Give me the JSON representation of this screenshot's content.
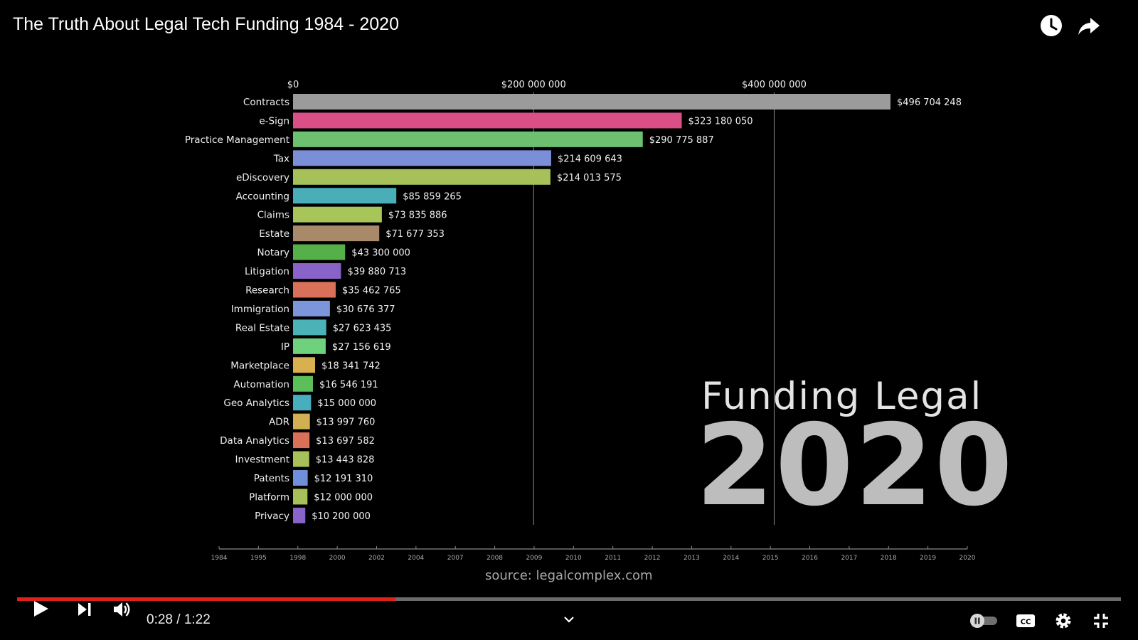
{
  "video": {
    "title": "The Truth About Legal Tech Funding 1984 - 2020",
    "current_time": "0:28",
    "separator": "/",
    "duration": "1:22",
    "progress_fraction": 0.343,
    "accent_color": "#e0201a"
  },
  "icons": {
    "top": [
      "clock-icon",
      "share-icon"
    ],
    "controls": [
      "play-icon",
      "next-icon",
      "volume-icon",
      "chevron-down-icon",
      "autoplay-toggle-icon",
      "cc-icon",
      "gear-icon",
      "exit-fullscreen-icon"
    ]
  },
  "watermark": {
    "line1": "Funding Legal",
    "line2": "2020"
  },
  "source": "source:  legalcomplex.com",
  "chart_data": {
    "type": "bar",
    "orientation": "horizontal",
    "x_ticks": [
      {
        "value": 0,
        "label": "$0"
      },
      {
        "value": 200000000,
        "label": "$200 000 000"
      },
      {
        "value": 400000000,
        "label": "$400 000 000"
      }
    ],
    "xlim": [
      0,
      500000000
    ],
    "grid": true,
    "categories": [
      "Contracts",
      "e-Sign",
      "Practice Management",
      "Tax",
      "eDiscovery",
      "Accounting",
      "Claims",
      "Estate",
      "Notary",
      "Litigation",
      "Research",
      "Immigration",
      "Real Estate",
      "IP",
      "Marketplace",
      "Automation",
      "Geo Analytics",
      "ADR",
      "Data Analytics",
      "Investment",
      "Patents",
      "Platform",
      "Privacy"
    ],
    "values": [
      496704248,
      323180050,
      290775887,
      214609643,
      214013575,
      85859265,
      73835886,
      71677353,
      43300000,
      39880713,
      35462765,
      30676377,
      27623435,
      27156619,
      18341742,
      16546191,
      15000000,
      13997760,
      13697582,
      13443828,
      12191310,
      12000000,
      10200000
    ],
    "value_labels": [
      "$496 704 248",
      "$323 180 050",
      "$290 775 887",
      "$214 609 643",
      "$214 013 575",
      "$85 859 265",
      "$73 835 886",
      "$71 677 353",
      "$43 300 000",
      "$39 880 713",
      "$35 462 765",
      "$30 676 377",
      "$27 623 435",
      "$27 156 619",
      "$18 341 742",
      "$16 546 191",
      "$15 000 000",
      "$13 997 760",
      "$13 697 582",
      "$13 443 828",
      "$12 191 310",
      "$12 000 000",
      "$10 200 000"
    ],
    "colors": [
      "#9b9b9b",
      "#d94f86",
      "#6cc070",
      "#7b8ed8",
      "#a6c05a",
      "#49aeb8",
      "#a8c55a",
      "#a8896a",
      "#56b04a",
      "#8a63c9",
      "#d9705a",
      "#7b96db",
      "#4bb3b8",
      "#6fd07d",
      "#d9b050",
      "#5cbf5a",
      "#48aebd",
      "#d0b050",
      "#d9705a",
      "#a7c05a",
      "#6f8fdb",
      "#a8c05a",
      "#8a63c9"
    ],
    "timeline_years": [
      "1984",
      "1995",
      "1998",
      "2000",
      "2002",
      "2004",
      "2007",
      "2008",
      "2009",
      "2010",
      "2011",
      "2012",
      "2013",
      "2014",
      "2015",
      "2016",
      "2017",
      "2018",
      "2019",
      "2020"
    ]
  }
}
